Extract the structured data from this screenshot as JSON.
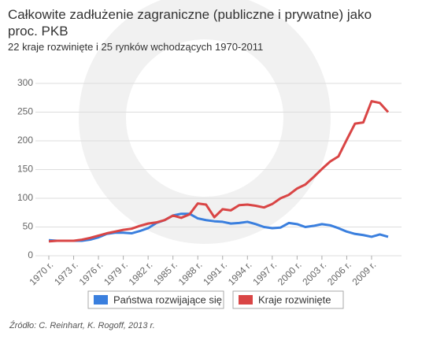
{
  "chart_data": {
    "type": "line",
    "title": "Całkowite zadłużenie zagraniczne (publiczne i prywatne) jako proc. PKB",
    "subtitle": "22 kraje rozwinięte i 25 rynków wchodzących 1970-2011",
    "source": "Źródło: C. Reinhart, K. Rogoff, 2013 r.",
    "x": [
      1970,
      1971,
      1972,
      1973,
      1974,
      1975,
      1976,
      1977,
      1978,
      1979,
      1980,
      1981,
      1982,
      1983,
      1984,
      1985,
      1986,
      1987,
      1988,
      1989,
      1990,
      1991,
      1992,
      1993,
      1994,
      1995,
      1996,
      1997,
      1998,
      1999,
      2000,
      2001,
      2002,
      2003,
      2004,
      2005,
      2006,
      2007,
      2008,
      2009,
      2010,
      2011
    ],
    "series": [
      {
        "name": "Państwa rozwijające się",
        "color": "#3a7fde",
        "values": [
          27,
          26,
          26,
          26,
          26,
          28,
          32,
          38,
          40,
          40,
          39,
          43,
          48,
          57,
          62,
          70,
          73,
          73,
          65,
          62,
          60,
          59,
          56,
          57,
          59,
          55,
          50,
          48,
          49,
          57,
          55,
          50,
          52,
          55,
          53,
          48,
          42,
          38,
          36,
          33,
          37,
          33
        ]
      },
      {
        "name": "Kraje rozwinięte",
        "color": "#d94545",
        "values": [
          25,
          26,
          26,
          26,
          28,
          31,
          35,
          39,
          42,
          45,
          47,
          52,
          56,
          58,
          62,
          70,
          66,
          72,
          91,
          89,
          67,
          81,
          79,
          88,
          89,
          87,
          84,
          90,
          100,
          106,
          117,
          124,
          137,
          151,
          164,
          173,
          202,
          230,
          232,
          269,
          266,
          250
        ]
      }
    ],
    "xlim": [
      1970,
      2011
    ],
    "xticks": [
      {
        "value": 1970,
        "label": "1970 r."
      },
      {
        "value": 1973,
        "label": "1973 r."
      },
      {
        "value": 1976,
        "label": "1976 r."
      },
      {
        "value": 1979,
        "label": "1979 r."
      },
      {
        "value": 1982,
        "label": "1982 r."
      },
      {
        "value": 1985,
        "label": "1985 r."
      },
      {
        "value": 1988,
        "label": "1988 r."
      },
      {
        "value": 1991,
        "label": "1991 r."
      },
      {
        "value": 1994,
        "label": "1994 r."
      },
      {
        "value": 1997,
        "label": "1997 r."
      },
      {
        "value": 2000,
        "label": "2000 r."
      },
      {
        "value": 2003,
        "label": "2003 r."
      },
      {
        "value": 2006,
        "label": "2006 r."
      },
      {
        "value": 2009,
        "label": "2009 r."
      }
    ],
    "ylim": [
      0,
      300
    ],
    "yticks": [
      0,
      50,
      100,
      150,
      200,
      250,
      300
    ],
    "grid": true
  }
}
